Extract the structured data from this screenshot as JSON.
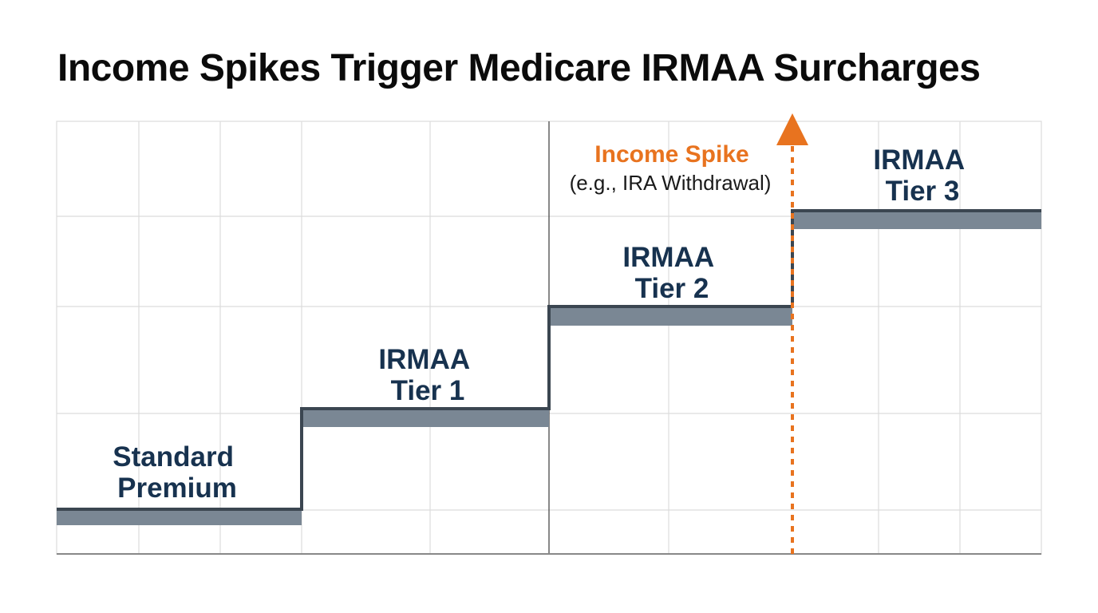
{
  "title": "Income Spikes Trigger Medicare IRMAA Surcharges",
  "steps": [
    {
      "label_lines": [
        "Standard",
        "Premium"
      ],
      "level": 1
    },
    {
      "label_lines": [
        "IRMAA",
        "Tier 1"
      ],
      "level": 2
    },
    {
      "label_lines": [
        "IRMAA",
        "Tier 2"
      ],
      "level": 3
    },
    {
      "label_lines": [
        "IRMAA",
        "Tier 3"
      ],
      "level": 4
    }
  ],
  "spike": {
    "title": "Income Spike",
    "subtitle": "(e.g., IRA Withdrawal)"
  },
  "colors": {
    "step_fill": "#7a8794",
    "step_edge": "#3b4651",
    "label": "#17324f",
    "spike": "#e8731f",
    "grid": "#dcdcdc",
    "axis": "#888888",
    "divider": "#555555"
  }
}
